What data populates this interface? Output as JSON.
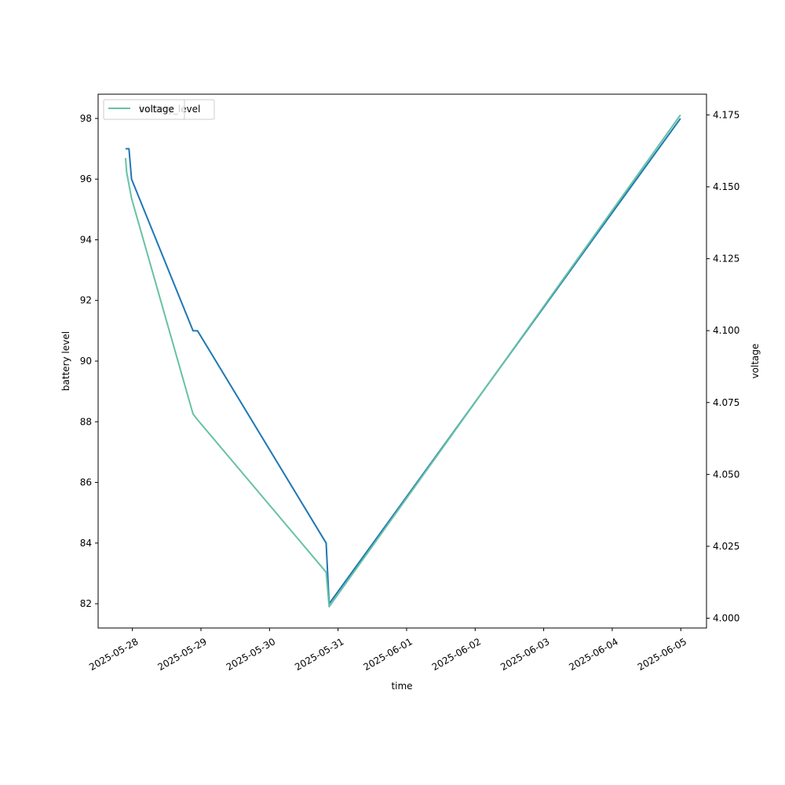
{
  "chart_data": {
    "type": "line",
    "xlabel": "time",
    "ylabel_left": "battery level",
    "ylabel_right": "voltage",
    "x_ticks": [
      "2025-05-28",
      "2025-05-29",
      "2025-05-30",
      "2025-05-31",
      "2025-06-01",
      "2025-06-02",
      "2025-06-03",
      "2025-06-04",
      "2025-06-05"
    ],
    "y_left_ticks": [
      "82",
      "84",
      "86",
      "88",
      "90",
      "92",
      "94",
      "96",
      "98"
    ],
    "y_right_ticks": [
      "4.000",
      "4.025",
      "4.050",
      "4.075",
      "4.100",
      "4.125",
      "4.150",
      "4.175"
    ],
    "xlim": [
      "2025-05-27 12:00",
      "2025-06-05 09:00"
    ],
    "ylim_left": [
      81.2,
      98.8
    ],
    "ylim_right": [
      3.9966,
      4.1822
    ],
    "legend_placement": "upper-left",
    "legend_overlap": true,
    "series": [
      {
        "name": "battery_level",
        "axis": "left",
        "color": "#1f77b4",
        "points": [
          {
            "t": "2025-05-27 21:36",
            "y": 97
          },
          {
            "t": "2025-05-27 22:48",
            "y": 97
          },
          {
            "t": "2025-05-27 23:42",
            "y": 96
          },
          {
            "t": "2025-05-28 21:14",
            "y": 91
          },
          {
            "t": "2025-05-28 22:48",
            "y": 91
          },
          {
            "t": "2025-05-30 19:50",
            "y": 84
          },
          {
            "t": "2025-05-30 20:53",
            "y": 82
          },
          {
            "t": "2025-06-04 23:53",
            "y": 98
          }
        ]
      },
      {
        "name": "voltage",
        "axis": "right",
        "color": "#66c2a5",
        "points": [
          {
            "t": "2025-05-27 21:36",
            "y": 4.16
          },
          {
            "t": "2025-05-27 22:00",
            "y": 4.155
          },
          {
            "t": "2025-05-27 23:42",
            "y": 4.146
          },
          {
            "t": "2025-05-28 21:14",
            "y": 4.071
          },
          {
            "t": "2025-05-28 22:48",
            "y": 4.069
          },
          {
            "t": "2025-05-30 19:50",
            "y": 4.016
          },
          {
            "t": "2025-05-30 20:53",
            "y": 4.004
          },
          {
            "t": "2025-06-04 23:53",
            "y": 4.175
          }
        ]
      }
    ]
  },
  "colors": {
    "battery_line": "#1f77b4",
    "voltage_line": "#66c2a5"
  }
}
